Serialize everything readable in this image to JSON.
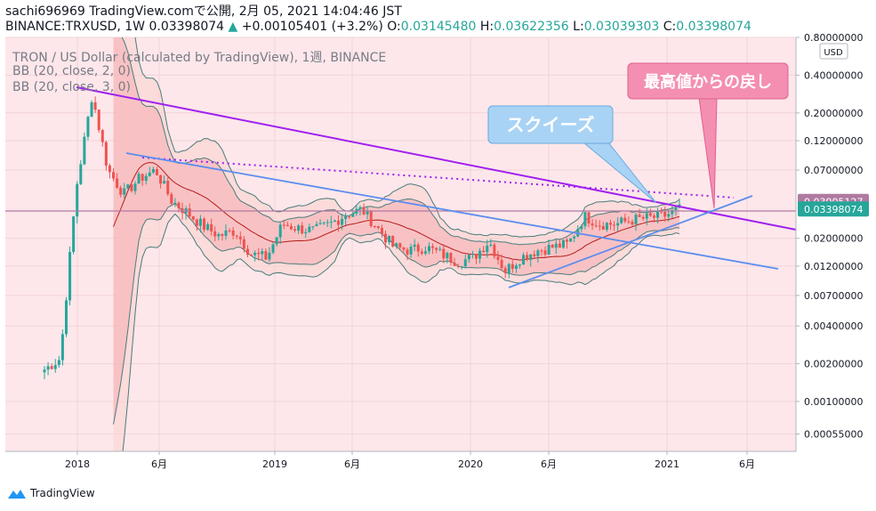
{
  "header": {
    "line1": "sachi696969 TradingView.comで公開, 2月 05, 2021 14:04:46 JST",
    "symbol": "BINANCE:TRXUSD, 1W 0.03398074",
    "change": "+0.00105401 (+3.2%)",
    "o_label": "O:",
    "o_value": "0.03145480",
    "h_label": "H:",
    "h_value": "0.03622356",
    "l_label": "L:",
    "l_value": "0.03039303",
    "c_label": "C:",
    "c_value": "0.03398074"
  },
  "legend": {
    "title": "TRON / US Dollar (calculated by TradingView), 1週, BINANCE",
    "bb1": "BB (20, close, 2, 0)",
    "bb2": "BB (20, close, 3, 0)"
  },
  "annotations": {
    "squeeze": "スクイーズ",
    "pullback": "最高値からの戻し"
  },
  "price_axis": {
    "currency": "USD",
    "labels": [
      "0.80000000",
      "0.40000000",
      "0.20000000",
      "0.12000000",
      "0.07000000",
      "0.03905127",
      "0.03398074",
      "0.02000000",
      "0.01200000",
      "0.00700000",
      "0.00400000",
      "0.00200000",
      "0.00100000",
      "0.00055000"
    ]
  },
  "time_axis": {
    "labels": [
      "2018",
      "6月",
      "2019",
      "6月",
      "2020",
      "6月",
      "2021",
      "6月"
    ]
  },
  "footer": {
    "brand": "TradingView"
  },
  "colors": {
    "bull": "#26a69a",
    "bear": "#ef5350",
    "accent_purple": "#9c27b0",
    "trend_blue": "#5b8def",
    "callout_blue": "#a9d3f5",
    "callout_pink": "#f48fb1"
  },
  "chart_data": {
    "type": "candlestick",
    "scale": "log",
    "ylim": [
      0.0004,
      0.8
    ],
    "highlight_prices": {
      "resistance": 0.03905127,
      "last": 0.03398074
    },
    "x": [
      "2017-10",
      "2017-11",
      "2017-12",
      "2018-01",
      "2018-02",
      "2018-03",
      "2018-04",
      "2018-05",
      "2018-06",
      "2018-07",
      "2018-08",
      "2018-09",
      "2018-10",
      "2018-11",
      "2018-12",
      "2019-01",
      "2019-02",
      "2019-03",
      "2019-04",
      "2019-05",
      "2019-06",
      "2019-07",
      "2019-08",
      "2019-09",
      "2019-10",
      "2019-11",
      "2019-12",
      "2020-01",
      "2020-02",
      "2020-03",
      "2020-04",
      "2020-05",
      "2020-06",
      "2020-07",
      "2020-08",
      "2020-09",
      "2020-10",
      "2020-11",
      "2020-12",
      "2021-01",
      "2021-02"
    ],
    "close": [
      0.0018,
      0.0022,
      0.05,
      0.28,
      0.07,
      0.045,
      0.06,
      0.07,
      0.04,
      0.032,
      0.025,
      0.021,
      0.023,
      0.015,
      0.014,
      0.026,
      0.024,
      0.023,
      0.026,
      0.031,
      0.034,
      0.024,
      0.017,
      0.016,
      0.017,
      0.015,
      0.013,
      0.014,
      0.019,
      0.011,
      0.014,
      0.016,
      0.017,
      0.018,
      0.03,
      0.026,
      0.026,
      0.028,
      0.029,
      0.03,
      0.034
    ]
  }
}
